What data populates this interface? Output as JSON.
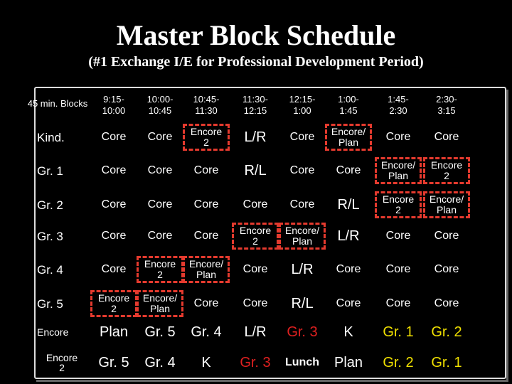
{
  "title": "Master Block Schedule",
  "subtitle": "(#1 Exchange I/E for Professional Development Period)",
  "corner": "45 min. Blocks",
  "columns": [
    "9:15- 10:00",
    "10:00- 10:45",
    "10:45- 11:30",
    "11:30- 12:15",
    "12:15- 1:00",
    "1:00- 1:45",
    "1:45- 2:30",
    "2:30- 3:15"
  ],
  "rows": [
    {
      "label": "Kind.",
      "cells": [
        "Core",
        "Core",
        "Encore 2",
        "L/R",
        "Core",
        "Encore/ Plan",
        "Core",
        "Core"
      ]
    },
    {
      "label": "Gr. 1",
      "cells": [
        "Core",
        "Core",
        "Core",
        "R/L",
        "Core",
        "Core",
        "Encore/ Plan",
        "Encore 2"
      ]
    },
    {
      "label": "Gr. 2",
      "cells": [
        "Core",
        "Core",
        "Core",
        "Core",
        "Core",
        "R/L",
        "Encore 2",
        "Encore/ Plan"
      ]
    },
    {
      "label": "Gr. 3",
      "cells": [
        "Core",
        "Core",
        "Core",
        "Encore 2",
        "Encore/ Plan",
        "L/R",
        "Core",
        "Core"
      ]
    },
    {
      "label": "Gr. 4",
      "cells": [
        "Core",
        "Encore 2",
        "Encore/ Plan",
        "Core",
        "L/R",
        "Core",
        "Core",
        "Core"
      ]
    },
    {
      "label": "Gr. 5",
      "cells": [
        "Encore 2",
        "Encore/ Plan",
        "Core",
        "Core",
        "R/L",
        "Core",
        "Core",
        "Core"
      ]
    },
    {
      "label": "Encore",
      "cells": [
        "Plan",
        "Gr. 5",
        "Gr. 4",
        "L/R",
        "Gr. 3",
        "K",
        "Gr. 1",
        "Gr. 2"
      ]
    },
    {
      "label": "Encore 2",
      "cells": [
        "Gr. 5",
        "Gr. 4",
        "K",
        "Gr. 3",
        "Lunch",
        "Plan",
        "Gr. 2",
        "Gr. 1"
      ]
    }
  ],
  "colors": {
    "red": "#e02020",
    "yellow": "#f0e000",
    "dashed_border": "#e53a2e"
  }
}
